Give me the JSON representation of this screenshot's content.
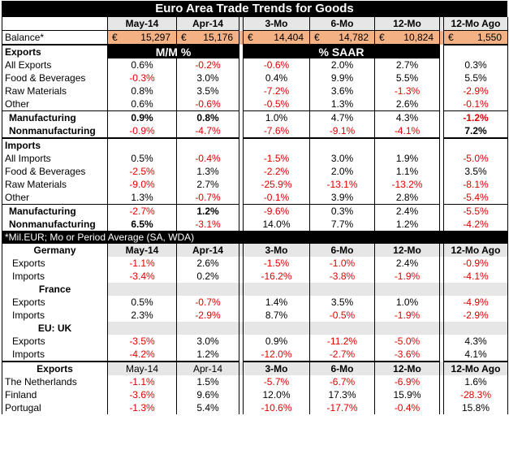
{
  "title": "Euro Area Trade Trends for Goods",
  "headers": [
    "May-14",
    "Apr-14",
    "3-Mo",
    "6-Mo",
    "12-Mo",
    "12-Mo Ago"
  ],
  "balance": {
    "label": "Balance*",
    "currency": "€",
    "values": [
      "15,297",
      "15,176",
      "14,404",
      "14,782",
      "10,824",
      "1,550"
    ]
  },
  "mm_label": "M/M %",
  "saar_label": "% SAAR",
  "exports_label": "Exports",
  "exports_rows": [
    {
      "label": "All Exports",
      "values": [
        "0.6%",
        "-0.2%",
        "-0.6%",
        "2.0%",
        "2.7%",
        "0.3%"
      ]
    },
    {
      "label": "Food & Beverages",
      "values": [
        "-0.3%",
        "3.0%",
        "0.4%",
        "9.9%",
        "5.5%",
        "5.5%"
      ]
    },
    {
      "label": "Raw Materials",
      "values": [
        "0.8%",
        "3.5%",
        "-7.2%",
        "3.6%",
        "-1.3%",
        "-2.9%"
      ]
    },
    {
      "label": "Other",
      "values": [
        "0.6%",
        "-0.6%",
        "-0.5%",
        "1.3%",
        "2.6%",
        "-0.1%"
      ]
    }
  ],
  "exports_sub": [
    {
      "label": "Manufacturing",
      "values": [
        "0.9%",
        "0.8%",
        "1.0%",
        "4.7%",
        "4.3%",
        "-1.2%"
      ]
    },
    {
      "label": "Nonmanufacturing",
      "values": [
        "-0.9%",
        "-4.7%",
        "-7.6%",
        "-9.1%",
        "-4.1%",
        "7.2%"
      ]
    }
  ],
  "imports_label": "Imports",
  "imports_rows": [
    {
      "label": "All Imports",
      "values": [
        "0.5%",
        "-0.4%",
        "-1.5%",
        "3.0%",
        "1.9%",
        "-5.0%"
      ]
    },
    {
      "label": "Food & Beverages",
      "values": [
        "-2.5%",
        "1.3%",
        "-2.2%",
        "2.0%",
        "1.1%",
        "3.5%"
      ]
    },
    {
      "label": "Raw Materials",
      "values": [
        "-9.0%",
        "2.7%",
        "-25.9%",
        "-13.1%",
        "-13.2%",
        "-8.1%"
      ]
    },
    {
      "label": "Other",
      "values": [
        "1.3%",
        "-0.7%",
        "-0.1%",
        "3.9%",
        "2.8%",
        "-5.4%"
      ]
    }
  ],
  "imports_sub": [
    {
      "label": "Manufacturing",
      "values": [
        "-2.7%",
        "1.2%",
        "-9.6%",
        "0.3%",
        "2.4%",
        "-5.5%"
      ]
    },
    {
      "label": "Nonmanufacturing",
      "values": [
        "6.5%",
        "-3.1%",
        "14.0%",
        "7.7%",
        "1.2%",
        "-4.2%"
      ]
    }
  ],
  "note": "*Mil.EUR; Mo or Period Average (SA, WDA)",
  "countries": [
    {
      "name": "Germany",
      "rows": [
        {
          "label": "Exports",
          "values": [
            "-1.1%",
            "2.6%",
            "-1.5%",
            "-1.0%",
            "2.4%",
            "-0.9%"
          ]
        },
        {
          "label": "Imports",
          "values": [
            "-3.4%",
            "0.2%",
            "-16.2%",
            "-3.8%",
            "-1.9%",
            "-4.1%"
          ]
        }
      ]
    },
    {
      "name": "France",
      "rows": [
        {
          "label": "Exports",
          "values": [
            "0.5%",
            "-0.7%",
            "1.4%",
            "3.5%",
            "1.0%",
            "-4.9%"
          ]
        },
        {
          "label": "Imports",
          "values": [
            "2.3%",
            "-2.9%",
            "8.7%",
            "-0.5%",
            "-1.9%",
            "-2.9%"
          ]
        }
      ]
    },
    {
      "name": "EU: UK",
      "rows": [
        {
          "label": "Exports",
          "values": [
            "-3.5%",
            "3.0%",
            "0.9%",
            "-11.2%",
            "-5.0%",
            "4.3%"
          ]
        },
        {
          "label": "Imports",
          "values": [
            "-4.2%",
            "1.2%",
            "-12.0%",
            "-2.7%",
            "-3.6%",
            "4.1%"
          ]
        }
      ]
    }
  ],
  "bottom_label": "Exports",
  "bottom_rows": [
    {
      "label": "The Netherlands",
      "values": [
        "-1.1%",
        "1.5%",
        "-5.7%",
        "-6.7%",
        "-6.9%",
        "1.6%"
      ]
    },
    {
      "label": "Finland",
      "values": [
        "-3.6%",
        "9.6%",
        "12.0%",
        "17.3%",
        "15.9%",
        "-28.3%"
      ]
    },
    {
      "label": "Portugal",
      "values": [
        "-1.3%",
        "5.4%",
        "-10.6%",
        "-17.7%",
        "-0.4%",
        "15.8%"
      ]
    }
  ]
}
